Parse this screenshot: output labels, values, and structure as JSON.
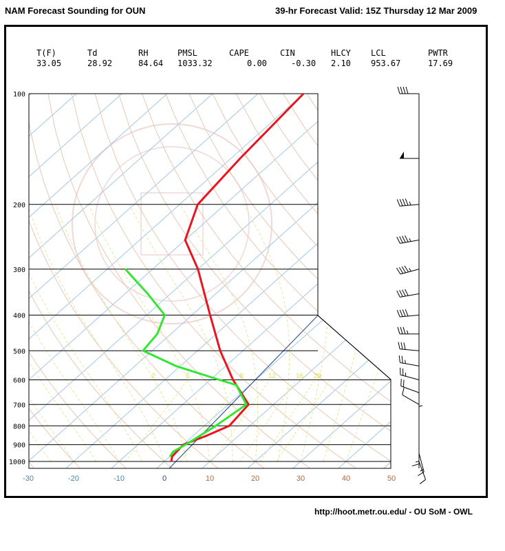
{
  "header": {
    "left": "NAM Forecast Sounding for OUN",
    "right": "39-hr Forecast Valid: 15Z Thursday 12 Mar 2009"
  },
  "stats": [
    {
      "label": "T(F)",
      "value": "33.05"
    },
    {
      "label": "Td",
      "value": "28.92"
    },
    {
      "label": "RH",
      "value": "84.64"
    },
    {
      "label": "PMSL",
      "value": "1033.32"
    },
    {
      "label": "CAPE",
      "value": "0.00"
    },
    {
      "label": "CIN",
      "value": "-0.30"
    },
    {
      "label": "HLCY",
      "value": "2.10"
    },
    {
      "label": "LCL",
      "value": "953.67"
    },
    {
      "label": "PWTR",
      "value": "17.69"
    }
  ],
  "footer": "http://hoot.metr.ou.edu/ - OU SoM - OWL",
  "colors": {
    "temperature": "#e8141e",
    "dewpoint": "#32e632",
    "isotherm": "#a0c8e6",
    "dry_adiabat": "#e6c8b4",
    "moist_adiabat": "#e6e6a0",
    "mixing_ratio": "#e6e68c",
    "parcel": "#3c5a96",
    "axis_tick_neg": "#4682b4",
    "axis_tick_pos": "#b4643c"
  },
  "chart_data": {
    "type": "line",
    "title": "",
    "xlabel": "",
    "ylabel": "",
    "x_ticks": [
      "-30",
      "-20",
      "-10",
      "0",
      "10",
      "20",
      "30",
      "40",
      "50"
    ],
    "pressure_ticks": [
      "100",
      "200",
      "300",
      "400",
      "500",
      "600",
      "700",
      "800",
      "900",
      "1000"
    ],
    "mixing_ratio_labels": [
      "2",
      "5",
      "8",
      "12",
      "16",
      "20"
    ],
    "xlim": [
      -30,
      50
    ],
    "ylim_pressure": [
      1000,
      100
    ],
    "series": [
      {
        "key": "temperature",
        "points": [
          {
            "p": 1000,
            "t": 1.5
          },
          {
            "p": 970,
            "t": 0.5
          },
          {
            "p": 900,
            "t": 0.0
          },
          {
            "p": 850,
            "t": 3.0
          },
          {
            "p": 800,
            "t": 5.5
          },
          {
            "p": 700,
            "t": 4.5
          },
          {
            "p": 600,
            "t": -5.0
          },
          {
            "p": 500,
            "t": -15.0
          },
          {
            "p": 400,
            "t": -26.0
          },
          {
            "p": 300,
            "t": -40.0
          },
          {
            "p": 250,
            "t": -50.0
          },
          {
            "p": 200,
            "t": -56.0
          },
          {
            "p": 150,
            "t": -58.0
          },
          {
            "p": 100,
            "t": -60.0
          }
        ]
      },
      {
        "key": "dewpoint",
        "points": [
          {
            "p": 970,
            "t": 0.0
          },
          {
            "p": 940,
            "t": -0.5
          },
          {
            "p": 900,
            "t": 0.5
          },
          {
            "p": 850,
            "t": 1.5
          },
          {
            "p": 800,
            "t": 2.5
          },
          {
            "p": 700,
            "t": 4.0
          },
          {
            "p": 620,
            "t": -3.0
          },
          {
            "p": 600,
            "t": -8.0
          },
          {
            "p": 550,
            "t": -21.0
          },
          {
            "p": 500,
            "t": -32.0
          },
          {
            "p": 450,
            "t": -33.0
          },
          {
            "p": 400,
            "t": -36.0
          },
          {
            "p": 350,
            "t": -45.0
          },
          {
            "p": 300,
            "t": -56.0
          }
        ]
      }
    ],
    "wind_barbs": [
      {
        "p": 1000,
        "dir": 160,
        "kt": 10
      },
      {
        "p": 950,
        "dir": 165,
        "kt": 15
      },
      {
        "p": 900,
        "dir": 180,
        "kt": 15
      },
      {
        "p": 800,
        "dir": 0,
        "kt": 5
      },
      {
        "p": 700,
        "dir": 300,
        "kt": 10
      },
      {
        "p": 650,
        "dir": 290,
        "kt": 20
      },
      {
        "p": 600,
        "dir": 285,
        "kt": 25
      },
      {
        "p": 550,
        "dir": 280,
        "kt": 25
      },
      {
        "p": 500,
        "dir": 275,
        "kt": 30
      },
      {
        "p": 450,
        "dir": 270,
        "kt": 35
      },
      {
        "p": 400,
        "dir": 265,
        "kt": 40
      },
      {
        "p": 350,
        "dir": 260,
        "kt": 40
      },
      {
        "p": 300,
        "dir": 255,
        "kt": 45
      },
      {
        "p": 250,
        "dir": 260,
        "kt": 45
      },
      {
        "p": 200,
        "dir": 265,
        "kt": 45
      },
      {
        "p": 150,
        "dir": 270,
        "kt": 50
      },
      {
        "p": 100,
        "dir": 270,
        "kt": 40
      }
    ]
  }
}
